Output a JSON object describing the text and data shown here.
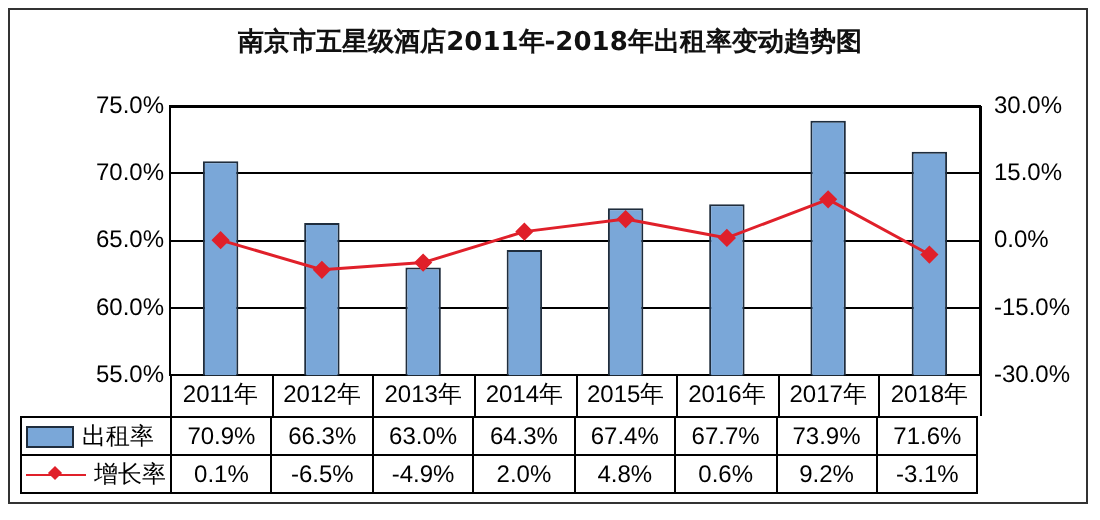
{
  "chart_data": {
    "type": "bar",
    "title": "南京市五星级酒店2011年-2018年出租率变动趋势图",
    "categories": [
      "2011年",
      "2012年",
      "2013年",
      "2014年",
      "2015年",
      "2016年",
      "2017年",
      "2018年"
    ],
    "series": [
      {
        "name": "出租率",
        "color": "#7aa7d8",
        "values": [
          70.9,
          66.3,
          63.0,
          64.3,
          67.4,
          67.7,
          73.9,
          71.6
        ],
        "value_labels": [
          "70.9%",
          "66.3%",
          "63.0%",
          "64.3%",
          "67.4%",
          "67.7%",
          "73.9%",
          "71.6%"
        ]
      },
      {
        "name": "增长率",
        "type": "line",
        "axis": "y2",
        "color": "#e0202a",
        "marker": "diamond",
        "values": [
          0.1,
          -6.5,
          -4.9,
          2.0,
          4.8,
          0.6,
          9.2,
          -3.1
        ],
        "value_labels": [
          "0.1%",
          "-6.5%",
          "-4.9%",
          "2.0%",
          "4.8%",
          "0.6%",
          "9.2%",
          "-3.1%"
        ]
      }
    ],
    "ylim": [
      55,
      75
    ],
    "yticks": [
      {
        "value": 55,
        "label": "55.0%"
      },
      {
        "value": 60,
        "label": "60.0%"
      },
      {
        "value": 65,
        "label": "65.0%"
      },
      {
        "value": 70,
        "label": "70.0%"
      },
      {
        "value": 75,
        "label": "75.0%"
      }
    ],
    "y2lim": [
      -30,
      30
    ],
    "y2ticks": [
      {
        "value": -30,
        "label": "-30.0%"
      },
      {
        "value": -15,
        "label": "-15.0%"
      },
      {
        "value": 0,
        "label": "0.0%"
      },
      {
        "value": 15,
        "label": "15.0%"
      },
      {
        "value": 30,
        "label": "30.0%"
      }
    ],
    "grid": "y",
    "legend": "bottom left"
  }
}
